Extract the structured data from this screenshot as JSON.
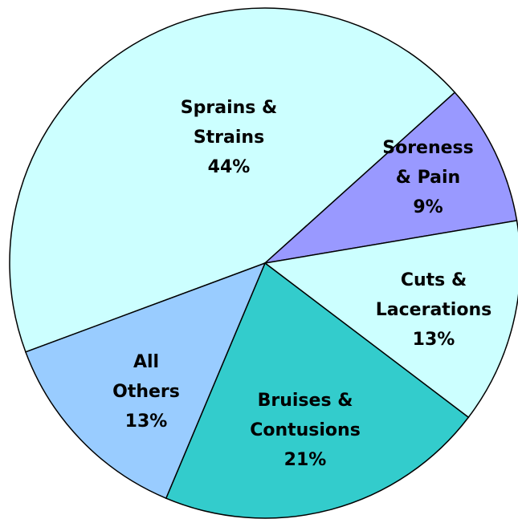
{
  "chart_data": {
    "type": "pie",
    "categories": [
      [
        "Sprains &",
        "Strains"
      ],
      [
        "Soreness",
        "& Pain"
      ],
      [
        "Cuts &",
        "Lacerations"
      ],
      [
        "Bruises &",
        "Contusions"
      ],
      [
        "All",
        "Others"
      ]
    ],
    "values": [
      44,
      9,
      13,
      21,
      13
    ],
    "value_labels": [
      "44%",
      "9%",
      "13%",
      "21%",
      "13%"
    ],
    "colors": [
      "#ccffff",
      "#9999ff",
      "#ccffff",
      "#33cccc",
      "#99ccff"
    ]
  }
}
